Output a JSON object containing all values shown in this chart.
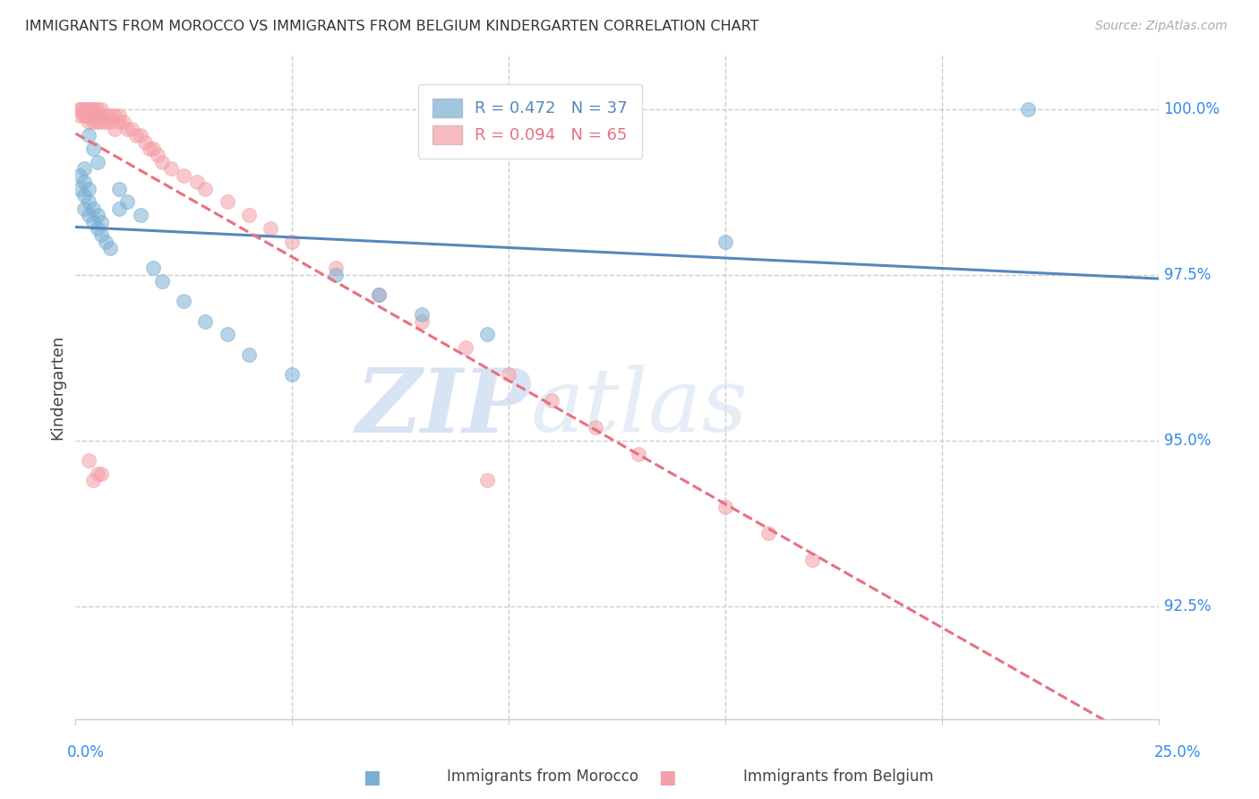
{
  "title": "IMMIGRANTS FROM MOROCCO VS IMMIGRANTS FROM BELGIUM KINDERGARTEN CORRELATION CHART",
  "source": "Source: ZipAtlas.com",
  "ylabel": "Kindergarten",
  "ytick_labels": [
    "100.0%",
    "97.5%",
    "95.0%",
    "92.5%"
  ],
  "ytick_values": [
    1.0,
    0.975,
    0.95,
    0.925
  ],
  "xlim": [
    0.0,
    0.25
  ],
  "ylim": [
    0.908,
    1.008
  ],
  "legend_morocco": "R = 0.472   N = 37",
  "legend_belgium": "R = 0.094   N = 65",
  "morocco_color": "#7BAFD4",
  "belgium_color": "#F4A0A8",
  "morocco_line_color": "#5588BB",
  "belgium_line_color": "#E87080",
  "background_color": "#FFFFFF",
  "watermark_zip": "ZIP",
  "watermark_atlas": "atlas",
  "morocco_x": [
    0.001,
    0.001,
    0.002,
    0.002,
    0.002,
    0.003,
    0.003,
    0.003,
    0.004,
    0.004,
    0.005,
    0.005,
    0.006,
    0.006,
    0.007,
    0.008,
    0.01,
    0.012,
    0.015,
    0.018,
    0.02,
    0.025,
    0.03,
    0.035,
    0.04,
    0.05,
    0.06,
    0.07,
    0.08,
    0.095,
    0.01,
    0.004,
    0.005,
    0.003,
    0.002,
    0.22,
    0.15
  ],
  "morocco_y": [
    0.99,
    0.988,
    0.989,
    0.987,
    0.985,
    0.988,
    0.986,
    0.984,
    0.985,
    0.983,
    0.984,
    0.982,
    0.983,
    0.981,
    0.98,
    0.979,
    0.988,
    0.986,
    0.984,
    0.976,
    0.974,
    0.971,
    0.968,
    0.966,
    0.963,
    0.96,
    0.975,
    0.972,
    0.969,
    0.966,
    0.985,
    0.994,
    0.992,
    0.996,
    0.991,
    1.0,
    0.98
  ],
  "belgium_x": [
    0.001,
    0.001,
    0.001,
    0.002,
    0.002,
    0.002,
    0.002,
    0.003,
    0.003,
    0.003,
    0.003,
    0.003,
    0.004,
    0.004,
    0.004,
    0.004,
    0.005,
    0.005,
    0.005,
    0.005,
    0.006,
    0.006,
    0.006,
    0.007,
    0.007,
    0.008,
    0.008,
    0.009,
    0.009,
    0.01,
    0.01,
    0.011,
    0.012,
    0.013,
    0.014,
    0.015,
    0.016,
    0.017,
    0.018,
    0.019,
    0.02,
    0.022,
    0.025,
    0.028,
    0.03,
    0.035,
    0.04,
    0.045,
    0.05,
    0.06,
    0.07,
    0.08,
    0.09,
    0.1,
    0.11,
    0.12,
    0.13,
    0.15,
    0.16,
    0.17,
    0.095,
    0.003,
    0.004,
    0.005,
    0.006
  ],
  "belgium_y": [
    1.0,
    1.0,
    0.999,
    1.0,
    1.0,
    0.999,
    0.999,
    1.0,
    1.0,
    0.999,
    0.999,
    0.998,
    1.0,
    1.0,
    0.999,
    0.998,
    1.0,
    0.999,
    0.999,
    0.998,
    1.0,
    0.999,
    0.998,
    0.999,
    0.998,
    0.999,
    0.998,
    0.999,
    0.997,
    0.999,
    0.998,
    0.998,
    0.997,
    0.997,
    0.996,
    0.996,
    0.995,
    0.994,
    0.994,
    0.993,
    0.992,
    0.991,
    0.99,
    0.989,
    0.988,
    0.986,
    0.984,
    0.982,
    0.98,
    0.976,
    0.972,
    0.968,
    0.964,
    0.96,
    0.956,
    0.952,
    0.948,
    0.94,
    0.936,
    0.932,
    0.944,
    0.947,
    0.944,
    0.945,
    0.945
  ]
}
